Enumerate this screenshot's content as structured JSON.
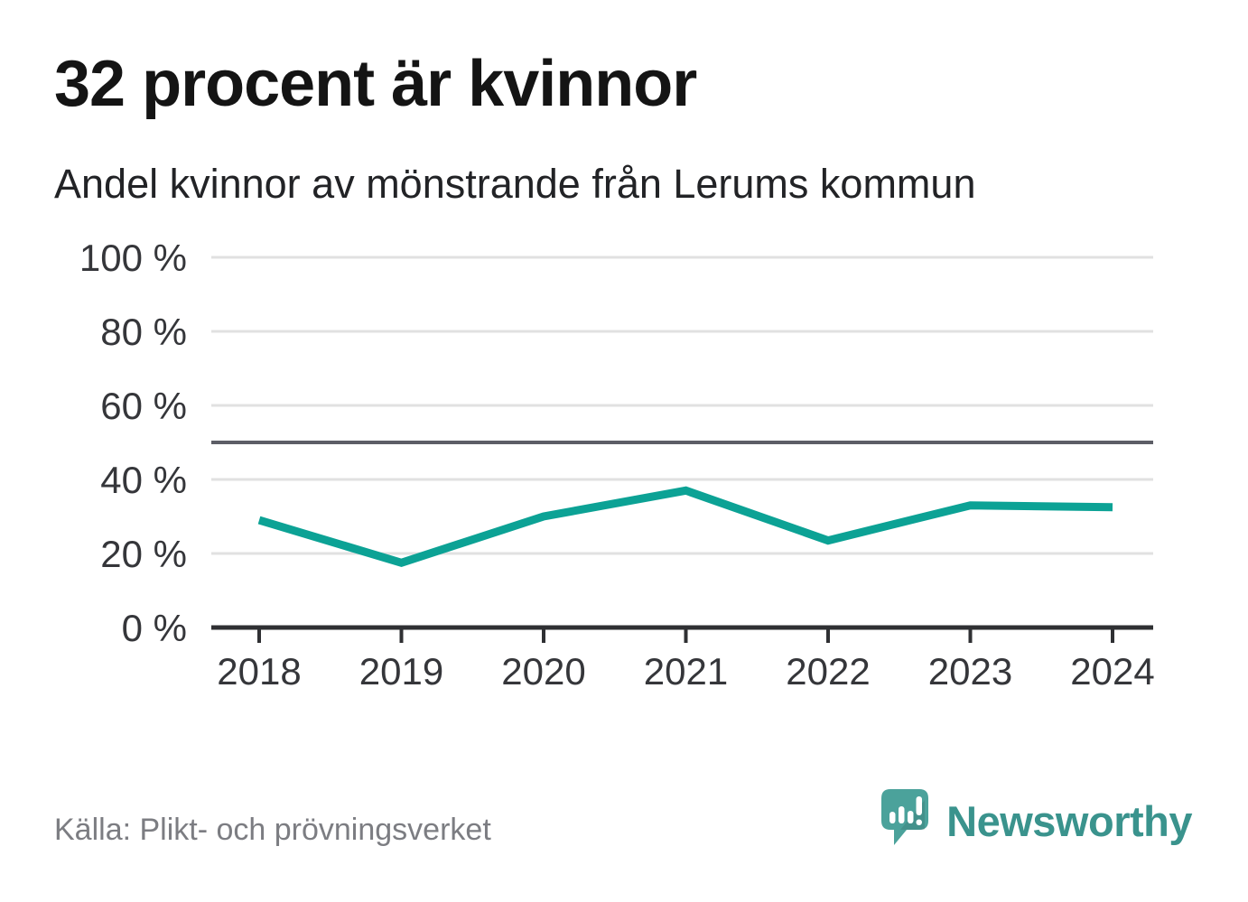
{
  "header": {
    "title": "32 procent är kvinnor",
    "subtitle": "Andel kvinnor av mönstrande från Lerums kommun"
  },
  "chart_data": {
    "type": "line",
    "title": "32 procent är kvinnor",
    "subtitle": "Andel kvinnor av mönstrande från Lerums kommun",
    "x": [
      "2018",
      "2019",
      "2020",
      "2021",
      "2022",
      "2023",
      "2024"
    ],
    "series": [
      {
        "name": "Andel kvinnor av mönstrande",
        "values": [
          29,
          17.5,
          30,
          37,
          23.5,
          33,
          32.5
        ]
      }
    ],
    "unit": "%",
    "ylim": [
      0,
      100
    ],
    "yticks": [
      0,
      20,
      40,
      60,
      80,
      100
    ],
    "ytick_suffix": " %",
    "benchmark_value": 50,
    "grid": true,
    "legend": "none",
    "colors": {
      "line": "#0ca295",
      "benchmark_line": "#5d5e66",
      "axis": "#2f3033",
      "gridline": "#e1e1e1",
      "tick_label": "#35363a"
    }
  },
  "footer": {
    "source": "Källa: Plikt- och prövningsverket",
    "brand": "Newsworthy",
    "brand_text_color": "#3a938d",
    "logo_bubble_color": "#4ba29b"
  }
}
